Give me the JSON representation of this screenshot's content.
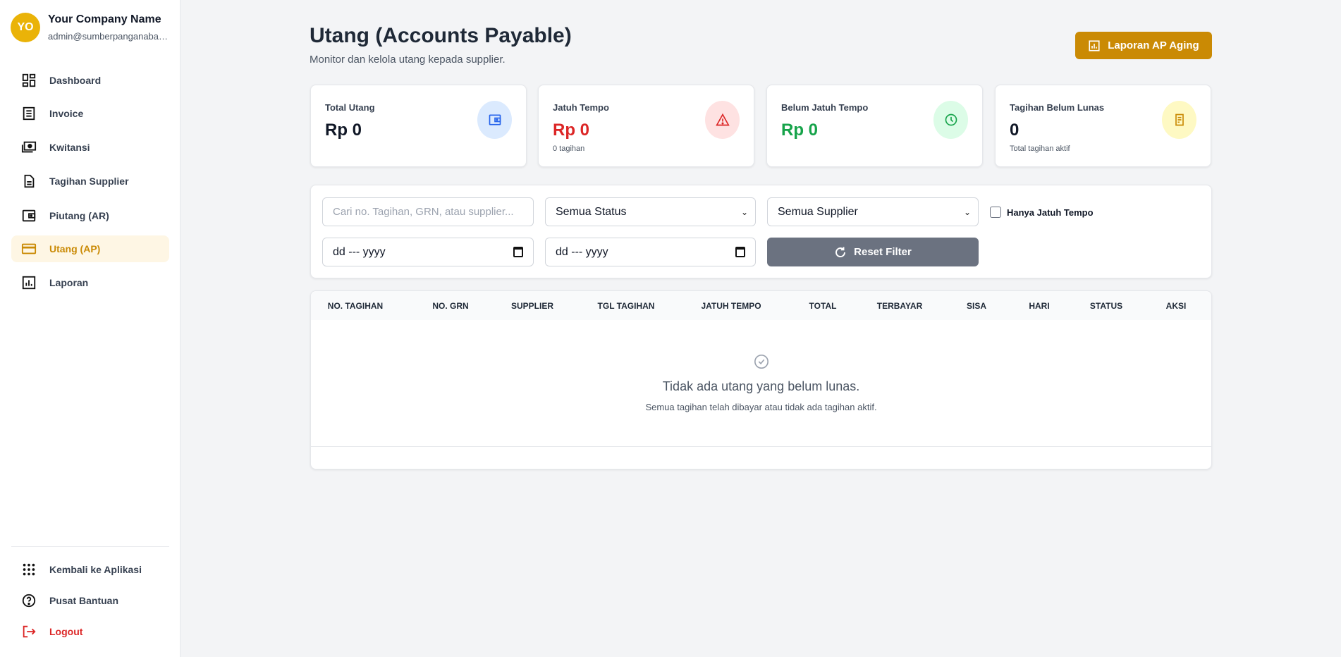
{
  "sidebar": {
    "avatar_initials": "YO",
    "company": "Your Company Name",
    "email": "admin@sumberpanganabadi.com",
    "items": [
      {
        "label": "Dashboard",
        "icon": "dashboard-icon"
      },
      {
        "label": "Invoice",
        "icon": "invoice-icon"
      },
      {
        "label": "Kwitansi",
        "icon": "money-icon"
      },
      {
        "label": "Tagihan Supplier",
        "icon": "document-icon"
      },
      {
        "label": "Piutang (AR)",
        "icon": "wallet-icon"
      },
      {
        "label": "Utang (AP)",
        "icon": "credit-card-icon",
        "active": true
      },
      {
        "label": "Laporan",
        "icon": "chart-icon"
      }
    ],
    "bottom": [
      {
        "label": "Kembali ke Aplikasi",
        "icon": "grid-icon"
      },
      {
        "label": "Pusat Bantuan",
        "icon": "help-icon"
      },
      {
        "label": "Logout",
        "icon": "logout-icon"
      }
    ]
  },
  "header": {
    "title": "Utang (Accounts Payable)",
    "subtitle": "Monitor dan kelola utang kepada supplier.",
    "aging_button": "Laporan AP Aging"
  },
  "cards": [
    {
      "label": "Total Utang",
      "value": "Rp 0",
      "sub": "",
      "color": "#111827",
      "icon": "wallet-icon",
      "icon_bg": "#dbeafe",
      "icon_color": "#2563eb"
    },
    {
      "label": "Jatuh Tempo",
      "value": "Rp 0",
      "sub": "0 tagihan",
      "color": "#dc2626",
      "icon": "warning-icon",
      "icon_bg": "#fee2e2",
      "icon_color": "#dc2626"
    },
    {
      "label": "Belum Jatuh Tempo",
      "value": "Rp 0",
      "sub": "",
      "color": "#16a34a",
      "icon": "clock-icon",
      "icon_bg": "#dcfce7",
      "icon_color": "#16a34a"
    },
    {
      "label": "Tagihan Belum Lunas",
      "value": "0",
      "sub": "Total tagihan aktif",
      "color": "#111827",
      "icon": "receipt-icon",
      "icon_bg": "#fef9c3",
      "icon_color": "#ca8a04"
    }
  ],
  "filters": {
    "search_placeholder": "Cari no. Tagihan, GRN, atau supplier...",
    "status_selected": "Semua Status",
    "supplier_selected": "Semua Supplier",
    "only_due_label": "Hanya Jatuh Tempo",
    "only_due_checked": false,
    "date_from": "dd --- yyyy",
    "date_to": "dd --- yyyy",
    "reset_label": "Reset Filter"
  },
  "table": {
    "columns": [
      "NO. TAGIHAN",
      "NO. GRN",
      "SUPPLIER",
      "TGL TAGIHAN",
      "JATUH TEMPO",
      "TOTAL",
      "TERBAYAR",
      "SISA",
      "HARI",
      "STATUS",
      "AKSI"
    ],
    "empty_title": "Tidak ada utang yang belum lunas.",
    "empty_sub": "Semua tagihan telah dibayar atau tidak ada tagihan aktif."
  }
}
